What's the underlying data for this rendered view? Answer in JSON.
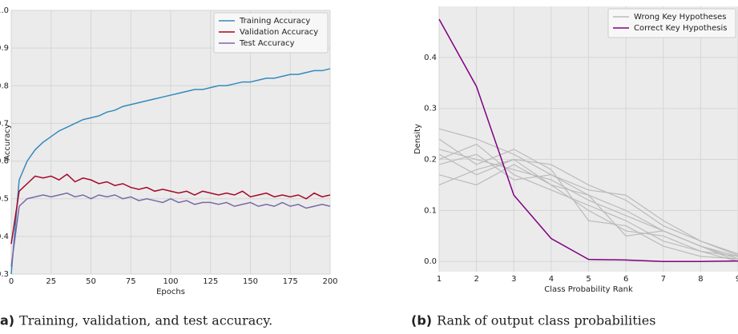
{
  "chart_data": [
    {
      "type": "line",
      "caption_label": "a)",
      "caption": "Training, validation, and test accuracy.",
      "x_label": "Epochs",
      "y_label": "Accuracy",
      "x": [
        0,
        5,
        10,
        15,
        20,
        25,
        30,
        35,
        40,
        45,
        50,
        55,
        60,
        65,
        70,
        75,
        80,
        85,
        90,
        95,
        100,
        105,
        110,
        115,
        120,
        125,
        130,
        135,
        140,
        145,
        150,
        155,
        160,
        165,
        170,
        175,
        180,
        185,
        190,
        195,
        200
      ],
      "series": [
        {
          "name": "Training Accuracy",
          "color": "#348abd",
          "values": [
            0.3,
            0.55,
            0.6,
            0.63,
            0.65,
            0.665,
            0.68,
            0.69,
            0.7,
            0.71,
            0.715,
            0.72,
            0.73,
            0.735,
            0.745,
            0.75,
            0.755,
            0.76,
            0.765,
            0.77,
            0.775,
            0.78,
            0.785,
            0.79,
            0.79,
            0.795,
            0.8,
            0.8,
            0.805,
            0.81,
            0.81,
            0.815,
            0.82,
            0.82,
            0.825,
            0.83,
            0.83,
            0.835,
            0.84,
            0.84,
            0.845
          ]
        },
        {
          "name": "Validation Accuracy",
          "color": "#a60628",
          "values": [
            0.38,
            0.52,
            0.54,
            0.56,
            0.555,
            0.56,
            0.55,
            0.565,
            0.545,
            0.555,
            0.55,
            0.54,
            0.545,
            0.535,
            0.54,
            0.53,
            0.525,
            0.53,
            0.52,
            0.525,
            0.52,
            0.515,
            0.52,
            0.51,
            0.52,
            0.515,
            0.51,
            0.515,
            0.51,
            0.52,
            0.505,
            0.51,
            0.515,
            0.505,
            0.51,
            0.505,
            0.51,
            0.5,
            0.515,
            0.505,
            0.51
          ]
        },
        {
          "name": "Test Accuracy",
          "color": "#7a68a6",
          "values": [
            0.32,
            0.48,
            0.5,
            0.505,
            0.51,
            0.505,
            0.51,
            0.515,
            0.505,
            0.51,
            0.5,
            0.51,
            0.505,
            0.51,
            0.5,
            0.505,
            0.495,
            0.5,
            0.495,
            0.49,
            0.5,
            0.49,
            0.495,
            0.485,
            0.49,
            0.49,
            0.485,
            0.49,
            0.48,
            0.485,
            0.49,
            0.48,
            0.485,
            0.48,
            0.49,
            0.48,
            0.485,
            0.475,
            0.48,
            0.485,
            0.48
          ]
        }
      ],
      "xlim": [
        0,
        200
      ],
      "xticks": [
        0,
        25,
        50,
        75,
        100,
        125,
        150,
        175,
        200
      ],
      "ylim": [
        0.3,
        1.0
      ],
      "yticks": [
        0.3,
        0.4,
        0.5,
        0.6,
        0.7,
        0.8,
        0.9,
        {
          "value": 1,
          "label": "1.0"
        }
      ],
      "grid": true,
      "legend": "upper right"
    },
    {
      "type": "line",
      "caption_label": "(b)",
      "caption": "Rank of output class probabilities",
      "x_label": "Class Probability Rank",
      "y_label": "Density",
      "x": [
        1,
        2,
        3,
        4,
        5,
        6,
        7,
        8,
        9
      ],
      "series": [
        {
          "name": "Wrong Key Hypotheses",
          "color": "#bbbbbb",
          "lines": [
            [
              0.26,
              0.24,
              0.21,
              0.17,
              0.13,
              0.1,
              0.06,
              0.03,
              0.01
            ],
            [
              0.15,
              0.18,
              0.2,
              0.19,
              0.15,
              0.12,
              0.07,
              0.04,
              0.015
            ],
            [
              0.22,
              0.2,
              0.18,
              0.16,
              0.12,
              0.09,
              0.06,
              0.03,
              0.005
            ],
            [
              0.17,
              0.15,
              0.19,
              0.15,
              0.1,
              0.06,
              0.05,
              0.02,
              0.0
            ],
            [
              0.2,
              0.23,
              0.17,
              0.14,
              0.11,
              0.08,
              0.04,
              0.02,
              0.01
            ],
            [
              0.24,
              0.19,
              0.22,
              0.18,
              0.08,
              0.07,
              0.03,
              0.01,
              0.005
            ],
            [
              0.19,
              0.21,
              0.16,
              0.17,
              0.14,
              0.13,
              0.08,
              0.04,
              0.012
            ],
            [
              0.21,
              0.17,
              0.2,
              0.15,
              0.13,
              0.05,
              0.06,
              0.03,
              0.0
            ]
          ]
        },
        {
          "name": "Correct Key Hypothesis",
          "color": "#800080",
          "values": [
            0.475,
            0.343,
            0.13,
            0.045,
            0.004,
            0.003,
            0.0,
            0.0,
            0.001
          ]
        }
      ],
      "xlim": [
        1,
        9
      ],
      "xticks": [
        1,
        2,
        3,
        4,
        5,
        6,
        7,
        8,
        9
      ],
      "ylim": [
        -0.02,
        0.5
      ],
      "yticks": [
        {
          "value": 0,
          "label": "0.0"
        },
        0.1,
        0.2,
        0.3,
        0.4
      ],
      "grid": true,
      "legend": "upper right"
    }
  ]
}
